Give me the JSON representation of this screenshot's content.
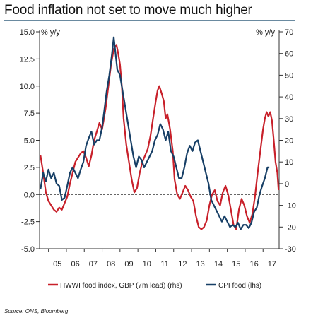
{
  "title": "Food inflation not set to move much higher",
  "source": "Source: ONS, Bloomberg",
  "colors": {
    "hwwi": "#c8202a",
    "cpi": "#173f66",
    "axis": "#333333",
    "title_rule": "#6a8aa0"
  },
  "chart_data": {
    "type": "line",
    "left_axis": {
      "unit_label": "% y/y",
      "min": -5,
      "max": 15,
      "ticks": [
        "15.0",
        "12.5",
        "10.0",
        "7.5",
        "5.0",
        "2.5",
        "0.0",
        "-2.5",
        "-5.0"
      ]
    },
    "right_axis": {
      "unit_label": "% y/y",
      "min": -30,
      "max": 70,
      "ticks": [
        "70",
        "60",
        "50",
        "40",
        "30",
        "20",
        "10",
        "0",
        "-10",
        "-20",
        "-30"
      ]
    },
    "x_axis": {
      "min": 2004.5,
      "max": 2017.9,
      "ticks": [
        "05",
        "06",
        "07",
        "08",
        "09",
        "10",
        "11",
        "12",
        "13",
        "14",
        "15",
        "16",
        "17"
      ]
    },
    "zero_line": true,
    "legend_position": "bottom",
    "series": [
      {
        "name": "HWWI food index, GBP (7m lead) (rhs)",
        "axis": "right",
        "color": "#c8202a",
        "points": [
          [
            2004.55,
            13
          ],
          [
            2004.7,
            5
          ],
          [
            2004.85,
            -4
          ],
          [
            2005.0,
            -8
          ],
          [
            2005.15,
            -10
          ],
          [
            2005.3,
            -12
          ],
          [
            2005.45,
            -13
          ],
          [
            2005.6,
            -11
          ],
          [
            2005.75,
            -12
          ],
          [
            2005.9,
            -9
          ],
          [
            2006.05,
            -6
          ],
          [
            2006.2,
            0
          ],
          [
            2006.35,
            5
          ],
          [
            2006.5,
            10
          ],
          [
            2006.65,
            12
          ],
          [
            2006.8,
            14
          ],
          [
            2006.95,
            15
          ],
          [
            2007.1,
            12
          ],
          [
            2007.25,
            8
          ],
          [
            2007.4,
            13
          ],
          [
            2007.55,
            20
          ],
          [
            2007.7,
            24
          ],
          [
            2007.85,
            28
          ],
          [
            2008.0,
            25
          ],
          [
            2008.1,
            30
          ],
          [
            2008.2,
            35
          ],
          [
            2008.35,
            45
          ],
          [
            2008.5,
            55
          ],
          [
            2008.65,
            62
          ],
          [
            2008.8,
            64
          ],
          [
            2008.9,
            60
          ],
          [
            2009.0,
            55
          ],
          [
            2009.1,
            45
          ],
          [
            2009.2,
            30
          ],
          [
            2009.35,
            18
          ],
          [
            2009.5,
            10
          ],
          [
            2009.65,
            2
          ],
          [
            2009.8,
            -4
          ],
          [
            2009.95,
            -2
          ],
          [
            2010.1,
            5
          ],
          [
            2010.25,
            10
          ],
          [
            2010.4,
            13
          ],
          [
            2010.55,
            16
          ],
          [
            2010.7,
            22
          ],
          [
            2010.85,
            30
          ],
          [
            2011.0,
            38
          ],
          [
            2011.1,
            43
          ],
          [
            2011.2,
            45
          ],
          [
            2011.35,
            41
          ],
          [
            2011.45,
            38
          ],
          [
            2011.55,
            30
          ],
          [
            2011.65,
            32
          ],
          [
            2011.8,
            25
          ],
          [
            2011.95,
            15
          ],
          [
            2012.05,
            2
          ],
          [
            2012.2,
            -5
          ],
          [
            2012.35,
            -7
          ],
          [
            2012.5,
            -4
          ],
          [
            2012.65,
            -1
          ],
          [
            2012.8,
            -3
          ],
          [
            2012.95,
            -6
          ],
          [
            2013.1,
            -8
          ],
          [
            2013.25,
            -15
          ],
          [
            2013.4,
            -20
          ],
          [
            2013.55,
            -21
          ],
          [
            2013.7,
            -20
          ],
          [
            2013.85,
            -17
          ],
          [
            2014.0,
            -10
          ],
          [
            2014.15,
            -5
          ],
          [
            2014.3,
            -3
          ],
          [
            2014.45,
            -8
          ],
          [
            2014.6,
            -10
          ],
          [
            2014.75,
            -4
          ],
          [
            2014.9,
            -1
          ],
          [
            2015.05,
            -5
          ],
          [
            2015.2,
            -12
          ],
          [
            2015.35,
            -19
          ],
          [
            2015.5,
            -21
          ],
          [
            2015.65,
            -12
          ],
          [
            2015.8,
            -7
          ],
          [
            2015.95,
            -10
          ],
          [
            2016.1,
            -15
          ],
          [
            2016.25,
            -18
          ],
          [
            2016.4,
            -14
          ],
          [
            2016.55,
            -6
          ],
          [
            2016.7,
            5
          ],
          [
            2016.85,
            15
          ],
          [
            2017.0,
            25
          ],
          [
            2017.1,
            30
          ],
          [
            2017.2,
            33
          ],
          [
            2017.3,
            31
          ],
          [
            2017.4,
            33
          ],
          [
            2017.5,
            29
          ],
          [
            2017.6,
            20
          ],
          [
            2017.7,
            10
          ],
          [
            2017.8,
            5
          ],
          [
            2017.87,
            -3
          ]
        ]
      },
      {
        "name": "CPI food (lhs)",
        "axis": "left",
        "color": "#173f66",
        "points": [
          [
            2004.55,
            0.5
          ],
          [
            2004.7,
            2.0
          ],
          [
            2004.85,
            1.2
          ],
          [
            2005.0,
            2.3
          ],
          [
            2005.15,
            1.5
          ],
          [
            2005.3,
            2.0
          ],
          [
            2005.45,
            1.0
          ],
          [
            2005.6,
            0.8
          ],
          [
            2005.75,
            -0.5
          ],
          [
            2005.9,
            -0.3
          ],
          [
            2006.05,
            0.8
          ],
          [
            2006.2,
            2.0
          ],
          [
            2006.35,
            2.5
          ],
          [
            2006.5,
            2.0
          ],
          [
            2006.65,
            1.5
          ],
          [
            2006.8,
            2.3
          ],
          [
            2006.95,
            3.0
          ],
          [
            2007.1,
            4.5
          ],
          [
            2007.25,
            5.2
          ],
          [
            2007.4,
            5.8
          ],
          [
            2007.55,
            4.6
          ],
          [
            2007.7,
            5.0
          ],
          [
            2007.85,
            5.0
          ],
          [
            2008.0,
            6.2
          ],
          [
            2008.1,
            7.5
          ],
          [
            2008.25,
            9.5
          ],
          [
            2008.4,
            11.0
          ],
          [
            2008.55,
            13.0
          ],
          [
            2008.65,
            14.5
          ],
          [
            2008.75,
            13.0
          ],
          [
            2008.85,
            11.5
          ],
          [
            2009.0,
            11.0
          ],
          [
            2009.15,
            9.5
          ],
          [
            2009.3,
            8.0
          ],
          [
            2009.45,
            6.5
          ],
          [
            2009.6,
            5.0
          ],
          [
            2009.75,
            3.5
          ],
          [
            2009.9,
            2.5
          ],
          [
            2010.05,
            3.5
          ],
          [
            2010.2,
            3.2
          ],
          [
            2010.35,
            2.5
          ],
          [
            2010.5,
            3.0
          ],
          [
            2010.65,
            3.5
          ],
          [
            2010.8,
            4.0
          ],
          [
            2010.95,
            5.0
          ],
          [
            2011.1,
            5.5
          ],
          [
            2011.25,
            6.5
          ],
          [
            2011.4,
            6.0
          ],
          [
            2011.55,
            5.0
          ],
          [
            2011.7,
            5.8
          ],
          [
            2011.85,
            4.0
          ],
          [
            2012.0,
            3.5
          ],
          [
            2012.15,
            2.5
          ],
          [
            2012.3,
            1.5
          ],
          [
            2012.45,
            1.5
          ],
          [
            2012.6,
            2.5
          ],
          [
            2012.75,
            3.8
          ],
          [
            2012.9,
            4.5
          ],
          [
            2013.05,
            4.0
          ],
          [
            2013.2,
            4.8
          ],
          [
            2013.35,
            5.0
          ],
          [
            2013.5,
            4.0
          ],
          [
            2013.65,
            3.0
          ],
          [
            2013.8,
            2.0
          ],
          [
            2013.95,
            1.0
          ],
          [
            2014.1,
            -0.5
          ],
          [
            2014.25,
            -1.0
          ],
          [
            2014.4,
            -1.5
          ],
          [
            2014.55,
            -2.0
          ],
          [
            2014.7,
            -2.5
          ],
          [
            2014.85,
            -2.0
          ],
          [
            2015.0,
            -2.5
          ],
          [
            2015.15,
            -3.0
          ],
          [
            2015.3,
            -2.8
          ],
          [
            2015.45,
            -3.0
          ],
          [
            2015.6,
            -2.6
          ],
          [
            2015.75,
            -3.2
          ],
          [
            2015.9,
            -2.8
          ],
          [
            2016.05,
            -2.8
          ],
          [
            2016.2,
            -3.1
          ],
          [
            2016.35,
            -2.6
          ],
          [
            2016.5,
            -1.6
          ],
          [
            2016.65,
            -1.2
          ],
          [
            2016.8,
            0.0
          ],
          [
            2016.95,
            0.8
          ],
          [
            2017.1,
            1.5
          ],
          [
            2017.25,
            2.5
          ],
          [
            2017.35,
            2.5
          ]
        ]
      }
    ]
  }
}
